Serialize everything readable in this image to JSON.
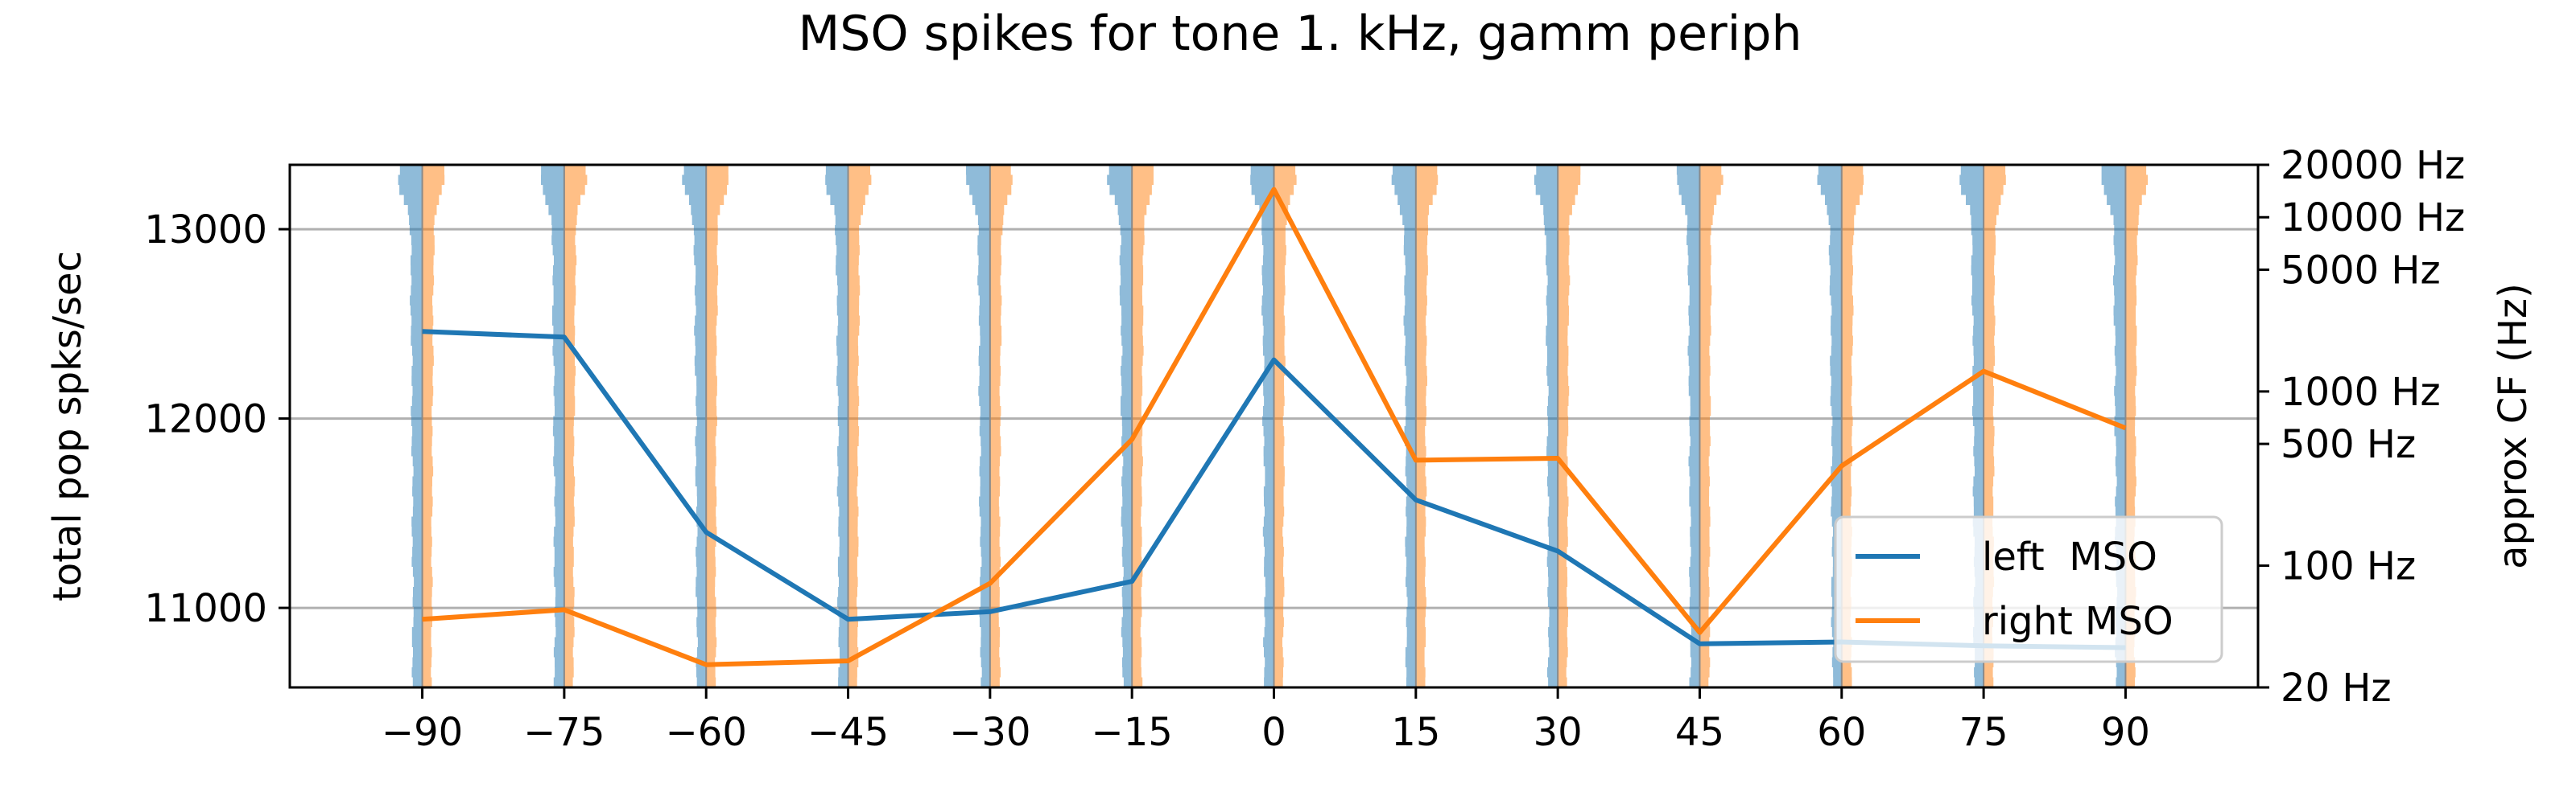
{
  "chart_data": {
    "type": "line",
    "title": "MSO spikes for tone 1. kHz, gamm periph",
    "ylabel_left": "total pop spks/sec",
    "ylabel_right": "approx CF (Hz)",
    "x": [
      -90,
      -75,
      -60,
      -45,
      -30,
      -15,
      0,
      15,
      30,
      45,
      60,
      75,
      90
    ],
    "xticks": [
      "−90",
      "−75",
      "−60",
      "−45",
      "−30",
      "−15",
      "0",
      "15",
      "30",
      "45",
      "60",
      "75",
      "90"
    ],
    "xlim": [
      -104,
      104
    ],
    "ylim": [
      10580,
      13340
    ],
    "yticks": [
      11000,
      12000,
      13000
    ],
    "ytick_labels": [
      "11000",
      "12000",
      "13000"
    ],
    "grid": "horizontal",
    "right_axis": {
      "scale": "log",
      "lim": [
        20,
        20000
      ],
      "ticks": [
        20,
        100,
        500,
        1000,
        5000,
        10000,
        20000
      ],
      "tick_labels": [
        "20 Hz",
        "100 Hz",
        "500 Hz",
        "1000 Hz",
        "5000 Hz",
        "10000 Hz",
        "20000 Hz"
      ]
    },
    "series": [
      {
        "name": "left  MSO",
        "color": "#1f77b4",
        "values": [
          12460,
          12430,
          11400,
          10940,
          10980,
          11140,
          12310,
          11570,
          11300,
          10810,
          10820,
          10800,
          10790
        ]
      },
      {
        "name": "right MSO",
        "color": "#ff7f0e",
        "values": [
          10940,
          10990,
          10700,
          10720,
          11130,
          11890,
          13210,
          11780,
          11790,
          10870,
          11750,
          12250,
          11950
        ]
      }
    ],
    "histograms": {
      "left_color": "#1f77b4",
      "right_color": "#ff7f0e",
      "opacity": 0.5
    },
    "legend": {
      "location": "lower right",
      "entries": [
        "left  MSO",
        "right MSO"
      ]
    }
  }
}
